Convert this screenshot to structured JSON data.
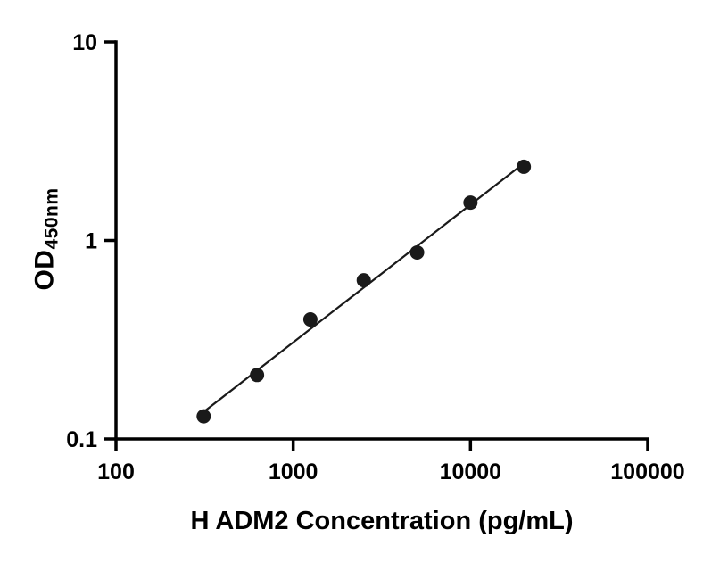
{
  "chart_data": {
    "type": "scatter",
    "title": "",
    "xlabel": "H ADM2 Concentration (pg/mL)",
    "ylabel": "OD",
    "ylabel_sub": "450nm",
    "xscale": "log",
    "yscale": "log",
    "xlim": [
      100,
      100000
    ],
    "ylim": [
      0.1,
      10
    ],
    "x": [
      312.5,
      625,
      1250,
      2500,
      5000,
      10000,
      20000
    ],
    "y": [
      0.13,
      0.21,
      0.4,
      0.63,
      0.87,
      1.55,
      2.35
    ],
    "x_ticks": [
      {
        "value": 100,
        "label": "100"
      },
      {
        "value": 1000,
        "label": "1000"
      },
      {
        "value": 10000,
        "label": "10000"
      },
      {
        "value": 100000,
        "label": "100000"
      }
    ],
    "y_ticks": [
      {
        "value": 0.1,
        "label": "0.1"
      },
      {
        "value": 1,
        "label": "1"
      },
      {
        "value": 10,
        "label": "10"
      }
    ],
    "grid": false,
    "legend": "none",
    "trend_line": true,
    "axis_color": "#000000",
    "line_color": "#1a1a1a",
    "marker_color": "#1a1a1a",
    "marker_radius": 8
  }
}
